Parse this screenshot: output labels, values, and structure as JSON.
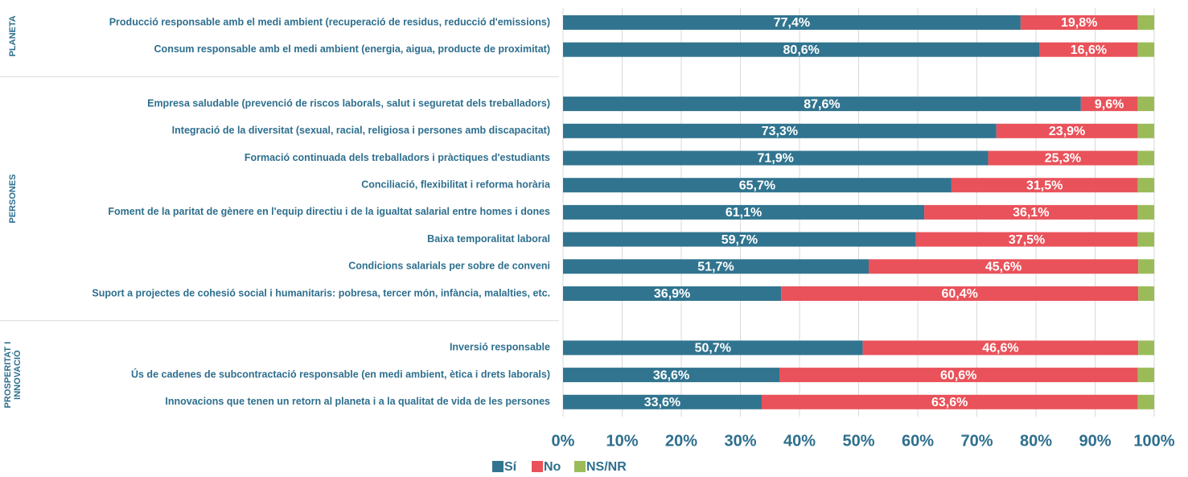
{
  "chart_data": {
    "type": "stacked-bar-horizontal",
    "groups": [
      [
        "PLANETA"
      ],
      [
        "PERSONES"
      ],
      [
        "PROSPERITAT I",
        "INNOVACIÓ"
      ]
    ],
    "categories": [
      "Producció responsable amb el medi ambient (recuperació de residus, reducció d'emissions)",
      "Consum responsable amb el medi ambient (energia, aigua, producte de proximitat)",
      null,
      "Empresa saludable (prevenció de riscos laborals, salut i seguretat dels treballadors)",
      "Integració de la diversitat (sexual, racial, religiosa i persones amb discapacitat)",
      "Formació continuada dels treballadors i pràctiques d'estudiants",
      "Conciliació, flexibilitat i reforma horària",
      "Foment de la paritat de gènere en l'equip directiu i de la igualtat salarial entre homes i dones",
      "Baixa temporalitat laboral",
      "Condicions salarials per sobre de conveni",
      "Suport a projectes de cohesió social i humanitaris: pobresa, tercer món, infància, malalties, etc.",
      null,
      "Inversió responsable",
      "Ús de cadenes de subcontractació responsable (en medi ambient, ètica i drets laborals)",
      "Innovacions que tenen un retorn al planeta i a la qualitat de vida de les persones"
    ],
    "series": [
      {
        "name": "Sí",
        "color": "#31748f",
        "values": [
          77.4,
          80.6,
          null,
          87.6,
          73.3,
          71.9,
          65.7,
          61.1,
          59.7,
          51.7,
          36.9,
          null,
          50.7,
          36.6,
          33.6
        ],
        "value_labels": [
          "77,4%",
          "80,6%",
          null,
          "87,6%",
          "73,3%",
          "71,9%",
          "65,7%",
          "61,1%",
          "59,7%",
          "51,7%",
          "36,9%",
          null,
          "50,7%",
          "36,6%",
          "33,6%"
        ]
      },
      {
        "name": "No",
        "color": "#e9525a",
        "values": [
          19.8,
          16.6,
          null,
          9.6,
          23.9,
          25.3,
          31.5,
          36.1,
          37.5,
          45.6,
          60.4,
          null,
          46.6,
          60.6,
          63.6
        ],
        "value_labels": [
          "19,8%",
          "16,6%",
          null,
          "9,6%",
          "23,9%",
          "25,3%",
          "31,5%",
          "36,1%",
          "37,5%",
          "45,6%",
          "60,4%",
          null,
          "46,6%",
          "60,6%",
          "63,6%"
        ]
      },
      {
        "name": "NS/NR",
        "color": "#9bbb59",
        "values": [
          2.8,
          2.8,
          null,
          2.8,
          2.8,
          2.8,
          2.8,
          2.8,
          2.8,
          2.7,
          2.7,
          null,
          2.7,
          2.8,
          2.8
        ]
      }
    ],
    "xlim": [
      0,
      100
    ],
    "xticks": [
      {
        "value": 0,
        "label": "0%"
      },
      {
        "value": 10,
        "label": "10%"
      },
      {
        "value": 20,
        "label": "20%"
      },
      {
        "value": 30,
        "label": "30%"
      },
      {
        "value": 40,
        "label": "40%"
      },
      {
        "value": 50,
        "label": "50%"
      },
      {
        "value": 60,
        "label": "60%"
      },
      {
        "value": 70,
        "label": "70%"
      },
      {
        "value": 80,
        "label": "80%"
      },
      {
        "value": 90,
        "label": "90%"
      },
      {
        "value": 100,
        "label": "100%"
      }
    ],
    "grid": true
  }
}
